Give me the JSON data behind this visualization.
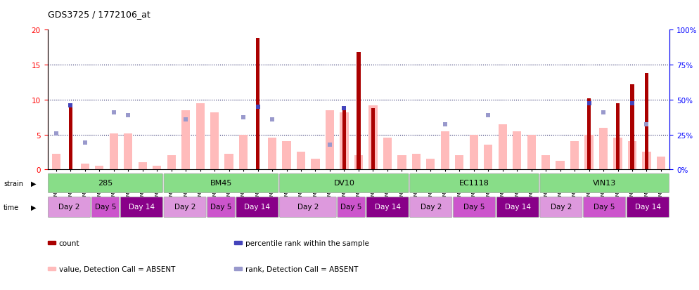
{
  "title": "GDS3725 / 1772106_at",
  "samples": [
    "GSM291115",
    "GSM291116",
    "GSM291117",
    "GSM291140",
    "GSM291141",
    "GSM291142",
    "GSM291000",
    "GSM291001",
    "GSM291462",
    "GSM291523",
    "GSM291524",
    "GSM291555",
    "GSM296856",
    "GSM296857",
    "GSM290992",
    "GSM290993",
    "GSM290989",
    "GSM290990",
    "GSM290991",
    "GSM291538",
    "GSM291539",
    "GSM291540",
    "GSM290994",
    "GSM290995",
    "GSM290996",
    "GSM291435",
    "GSM291439",
    "GSM291445",
    "GSM291554",
    "GSM296858",
    "GSM296859",
    "GSM290997",
    "GSM290998",
    "GSM290999",
    "GSM290901",
    "GSM290902",
    "GSM290903",
    "GSM291525",
    "GSM296860",
    "GSM296861",
    "GSM291002",
    "GSM291003",
    "GSM292045"
  ],
  "pink_bars": [
    2.2,
    0.0,
    0.8,
    0.5,
    5.2,
    5.2,
    1.0,
    0.5,
    2.0,
    8.5,
    9.5,
    8.2,
    2.2,
    5.0,
    0.0,
    4.5,
    4.0,
    2.5,
    1.5,
    8.5,
    8.2,
    2.0,
    9.2,
    4.5,
    2.0,
    2.2,
    1.5,
    5.5,
    2.0,
    5.0,
    3.5,
    6.5,
    5.5,
    5.0,
    2.0,
    1.2,
    4.0,
    5.0,
    6.0,
    4.5,
    4.0,
    2.5,
    1.8
  ],
  "red_bars": [
    0.0,
    9.2,
    0.0,
    0.0,
    0.0,
    0.0,
    0.0,
    0.0,
    0.0,
    0.0,
    0.0,
    0.0,
    0.0,
    0.0,
    18.8,
    0.0,
    0.0,
    0.0,
    0.0,
    0.0,
    9.0,
    16.8,
    8.8,
    0.0,
    0.0,
    0.0,
    0.0,
    0.0,
    0.0,
    0.0,
    0.0,
    0.0,
    0.0,
    0.0,
    0.0,
    0.0,
    0.0,
    10.2,
    0.0,
    9.5,
    12.2,
    13.8,
    0.0
  ],
  "blue_sq": [
    null,
    9.2,
    null,
    null,
    null,
    null,
    null,
    null,
    null,
    null,
    null,
    null,
    null,
    null,
    9.0,
    null,
    null,
    null,
    null,
    null,
    8.8,
    null,
    null,
    null,
    null,
    null,
    null,
    null,
    null,
    null,
    null,
    null,
    null,
    null,
    null,
    null,
    null,
    9.5,
    null,
    null,
    9.5,
    null,
    null
  ],
  "lightblue_sq": [
    5.2,
    null,
    3.8,
    null,
    8.2,
    7.8,
    null,
    null,
    null,
    7.2,
    null,
    null,
    null,
    7.5,
    null,
    7.2,
    null,
    null,
    null,
    3.5,
    null,
    null,
    null,
    null,
    null,
    null,
    null,
    6.5,
    null,
    null,
    7.8,
    null,
    null,
    null,
    null,
    null,
    null,
    null,
    8.2,
    null,
    null,
    6.5,
    null
  ],
  "strain_groups": [
    {
      "label": "285",
      "start": 0,
      "end": 8
    },
    {
      "label": "BM45",
      "start": 8,
      "end": 16
    },
    {
      "label": "DV10",
      "start": 16,
      "end": 25
    },
    {
      "label": "EC1118",
      "start": 25,
      "end": 34
    },
    {
      "label": "VIN13",
      "start": 34,
      "end": 43
    }
  ],
  "time_groups": [
    {
      "label": "Day 2",
      "start": 0,
      "end": 3,
      "shade": 0
    },
    {
      "label": "Day 5",
      "start": 3,
      "end": 5,
      "shade": 1
    },
    {
      "label": "Day 14",
      "start": 5,
      "end": 8,
      "shade": 2
    },
    {
      "label": "Day 2",
      "start": 8,
      "end": 11,
      "shade": 0
    },
    {
      "label": "Day 5",
      "start": 11,
      "end": 13,
      "shade": 1
    },
    {
      "label": "Day 14",
      "start": 13,
      "end": 16,
      "shade": 2
    },
    {
      "label": "Day 2",
      "start": 16,
      "end": 20,
      "shade": 0
    },
    {
      "label": "Day 5",
      "start": 20,
      "end": 22,
      "shade": 1
    },
    {
      "label": "Day 14",
      "start": 22,
      "end": 25,
      "shade": 2
    },
    {
      "label": "Day 2",
      "start": 25,
      "end": 28,
      "shade": 0
    },
    {
      "label": "Day 5",
      "start": 28,
      "end": 31,
      "shade": 1
    },
    {
      "label": "Day 14",
      "start": 31,
      "end": 34,
      "shade": 2
    },
    {
      "label": "Day 2",
      "start": 34,
      "end": 37,
      "shade": 0
    },
    {
      "label": "Day 5",
      "start": 37,
      "end": 40,
      "shade": 1
    },
    {
      "label": "Day 14",
      "start": 40,
      "end": 43,
      "shade": 2
    }
  ],
  "time_colors": [
    "#dd99dd",
    "#cc55cc",
    "#880088"
  ],
  "time_text_colors": [
    "black",
    "black",
    "white"
  ],
  "strain_color": "#88dd88",
  "ylim_left": [
    0,
    20
  ],
  "ylim_right": [
    0,
    100
  ],
  "yticks_left": [
    0,
    5,
    10,
    15,
    20
  ],
  "yticks_right": [
    0,
    25,
    50,
    75,
    100
  ],
  "red_color": "#aa0000",
  "pink_color": "#ffbbbb",
  "blue_color": "#4444bb",
  "lightblue_color": "#9999cc",
  "grid_color": "#222266",
  "plot_bg": "#ffffff",
  "fig_bg": "#ffffff",
  "legend_items": [
    {
      "color": "#aa0000",
      "label": "count"
    },
    {
      "color": "#4444bb",
      "label": "percentile rank within the sample"
    },
    {
      "color": "#ffbbbb",
      "label": "value, Detection Call = ABSENT"
    },
    {
      "color": "#9999cc",
      "label": "rank, Detection Call = ABSENT"
    }
  ]
}
